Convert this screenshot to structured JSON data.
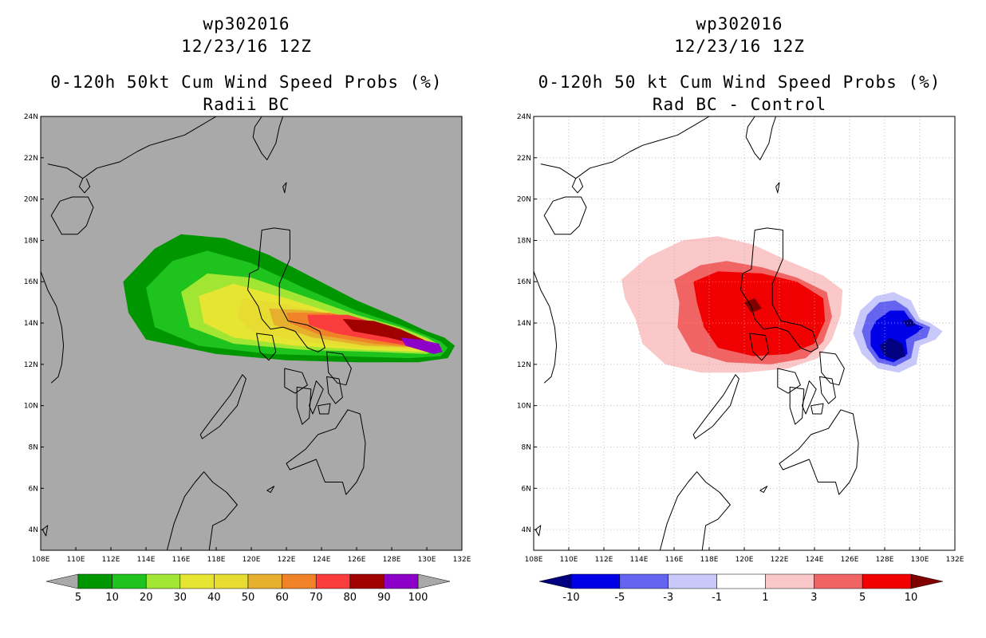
{
  "chart_data": [
    {
      "type": "heatmap",
      "storm": "wp302016",
      "date": "12/23/16 12Z",
      "title": "0-120h 50kt Cum Wind Speed Probs (%)",
      "subtitle": "Radii BC",
      "x_ticks": [
        "108E",
        "110E",
        "112E",
        "114E",
        "116E",
        "118E",
        "120E",
        "122E",
        "124E",
        "126E",
        "128E",
        "130E",
        "132E"
      ],
      "y_ticks": [
        "4N",
        "6N",
        "8N",
        "10N",
        "12N",
        "14N",
        "16N",
        "18N",
        "20N",
        "22N",
        "24N"
      ],
      "xlim": [
        108,
        132
      ],
      "ylim": [
        3,
        24
      ],
      "background": "#a9a9a9",
      "colorbar": {
        "labels": [
          "5",
          "10",
          "20",
          "30",
          "40",
          "50",
          "60",
          "70",
          "80",
          "90",
          "100"
        ],
        "colors": [
          "#009600",
          "#1ec31e",
          "#a0e632",
          "#e6e632",
          "#e6dc32",
          "#e6af2d",
          "#f08228",
          "#fa3c3c",
          "#a00000",
          "#8c00c8"
        ],
        "under_color": "#a9a9a9",
        "over_color": "#a9a9a9"
      },
      "contours": [
        {
          "level": 5,
          "color": "#009600",
          "points": [
            [
              112.7,
              16.0
            ],
            [
              114.5,
              17.6
            ],
            [
              116.0,
              18.3
            ],
            [
              118.5,
              18.1
            ],
            [
              121.0,
              17.3
            ],
            [
              123.5,
              16.2
            ],
            [
              126.0,
              15.1
            ],
            [
              128.5,
              14.2
            ],
            [
              130.0,
              13.6
            ],
            [
              131.0,
              13.3
            ],
            [
              131.6,
              12.9
            ],
            [
              131.2,
              12.3
            ],
            [
              129.5,
              12.1
            ],
            [
              126.0,
              12.1
            ],
            [
              122.0,
              12.2
            ],
            [
              118.0,
              12.5
            ],
            [
              114.0,
              13.2
            ],
            [
              113.0,
              14.5
            ]
          ]
        },
        {
          "level": 10,
          "color": "#1ec31e",
          "points": [
            [
              114.0,
              15.7
            ],
            [
              115.5,
              17.0
            ],
            [
              117.5,
              17.5
            ],
            [
              120.0,
              16.9
            ],
            [
              123.0,
              15.7
            ],
            [
              126.0,
              14.6
            ],
            [
              128.5,
              13.9
            ],
            [
              130.0,
              13.4
            ],
            [
              130.8,
              13.1
            ],
            [
              131.2,
              12.8
            ],
            [
              130.8,
              12.4
            ],
            [
              129.0,
              12.3
            ],
            [
              125.0,
              12.4
            ],
            [
              121.0,
              12.5
            ],
            [
              117.0,
              12.9
            ],
            [
              114.5,
              13.8
            ]
          ]
        },
        {
          "level": 20,
          "color": "#a0e632",
          "points": [
            [
              116.0,
              15.5
            ],
            [
              117.5,
              16.4
            ],
            [
              120.0,
              16.2
            ],
            [
              123.0,
              15.3
            ],
            [
              126.0,
              14.4
            ],
            [
              128.5,
              13.8
            ],
            [
              130.0,
              13.3
            ],
            [
              130.8,
              12.9
            ],
            [
              130.0,
              12.5
            ],
            [
              127.0,
              12.6
            ],
            [
              123.0,
              12.7
            ],
            [
              119.0,
              13.0
            ],
            [
              116.5,
              13.8
            ]
          ]
        },
        {
          "level": 30,
          "color": "#e6e632",
          "points": [
            [
              117.0,
              15.3
            ],
            [
              119.0,
              15.9
            ],
            [
              122.0,
              15.2
            ],
            [
              125.0,
              14.4
            ],
            [
              128.0,
              13.8
            ],
            [
              130.0,
              13.2
            ],
            [
              130.6,
              12.9
            ],
            [
              129.8,
              12.6
            ],
            [
              126.5,
              12.7
            ],
            [
              122.5,
              12.9
            ],
            [
              119.0,
              13.3
            ],
            [
              117.3,
              14.0
            ]
          ]
        },
        {
          "level": 40,
          "color": "#e6dc32",
          "points": [
            [
              119.5,
              15.2
            ],
            [
              122.0,
              14.9
            ],
            [
              125.0,
              14.3
            ],
            [
              128.0,
              13.7
            ],
            [
              130.0,
              13.2
            ],
            [
              130.5,
              12.9
            ],
            [
              129.8,
              12.7
            ],
            [
              126.5,
              12.8
            ],
            [
              123.0,
              13.1
            ],
            [
              120.0,
              13.6
            ],
            [
              119.2,
              14.3
            ]
          ]
        },
        {
          "level": 50,
          "color": "#e6af2d",
          "points": [
            [
              121.0,
              14.7
            ],
            [
              123.5,
              14.6
            ],
            [
              126.0,
              14.2
            ],
            [
              128.5,
              13.6
            ],
            [
              130.2,
              13.1
            ],
            [
              130.5,
              12.9
            ],
            [
              129.8,
              12.8
            ],
            [
              126.5,
              12.9
            ],
            [
              123.5,
              13.3
            ],
            [
              121.3,
              13.9
            ]
          ]
        },
        {
          "level": 60,
          "color": "#f08228",
          "points": [
            [
              122.0,
              14.5
            ],
            [
              124.5,
              14.5
            ],
            [
              127.0,
              14.0
            ],
            [
              129.0,
              13.5
            ],
            [
              130.3,
              13.0
            ],
            [
              129.8,
              12.8
            ],
            [
              127.0,
              13.0
            ],
            [
              124.0,
              13.4
            ],
            [
              122.2,
              14.0
            ]
          ]
        },
        {
          "level": 70,
          "color": "#fa3c3c",
          "points": [
            [
              123.2,
              14.4
            ],
            [
              125.5,
              14.4
            ],
            [
              127.5,
              13.9
            ],
            [
              129.3,
              13.4
            ],
            [
              130.4,
              12.9
            ],
            [
              129.8,
              12.8
            ],
            [
              127.5,
              13.1
            ],
            [
              124.8,
              13.5
            ],
            [
              123.3,
              13.9
            ]
          ]
        },
        {
          "level": 80,
          "color": "#a00000",
          "points": [
            [
              125.2,
              14.2
            ],
            [
              127.0,
              14.1
            ],
            [
              128.5,
              13.7
            ],
            [
              129.8,
              13.2
            ],
            [
              130.3,
              12.9
            ],
            [
              129.7,
              12.9
            ],
            [
              127.8,
              13.3
            ],
            [
              125.8,
              13.6
            ]
          ]
        },
        {
          "level": 90,
          "color": "#8c00c8",
          "points": [
            [
              128.5,
              13.3
            ],
            [
              129.6,
              13.2
            ],
            [
              130.7,
              13.0
            ],
            [
              130.9,
              12.6
            ],
            [
              130.4,
              12.5
            ],
            [
              129.6,
              12.7
            ],
            [
              128.8,
              12.9
            ]
          ]
        }
      ]
    },
    {
      "type": "heatmap",
      "storm": "wp302016",
      "date": "12/23/16 12Z",
      "title": "0-120h 50 kt Cum Wind Speed Probs (%)",
      "subtitle": "Rad BC - Control",
      "x_ticks": [
        "108E",
        "110E",
        "112E",
        "114E",
        "116E",
        "118E",
        "120E",
        "122E",
        "124E",
        "126E",
        "128E",
        "130E",
        "132E"
      ],
      "y_ticks": [
        "4N",
        "6N",
        "8N",
        "10N",
        "12N",
        "14N",
        "16N",
        "18N",
        "20N",
        "22N",
        "24N"
      ],
      "xlim": [
        108,
        132
      ],
      "ylim": [
        3,
        24
      ],
      "background": "#ffffff",
      "grid": true,
      "colorbar": {
        "labels": [
          "-10",
          "-5",
          "-3",
          "-1",
          "1",
          "3",
          "5",
          "10"
        ],
        "colors": [
          "#0000e6",
          "#6464f0",
          "#c8c8fa",
          "#ffffff",
          "#fac8c8",
          "#f06464",
          "#f00000"
        ],
        "under_color": "#000080",
        "over_color": "#800000"
      },
      "contours": [
        {
          "level": 1,
          "color": "#fac8c8",
          "points": [
            [
              113.0,
              16.1
            ],
            [
              114.5,
              17.2
            ],
            [
              116.5,
              18.0
            ],
            [
              118.5,
              18.2
            ],
            [
              120.5,
              17.8
            ],
            [
              122.5,
              17.0
            ],
            [
              124.5,
              16.3
            ],
            [
              125.6,
              15.6
            ],
            [
              125.5,
              14.4
            ],
            [
              125.0,
              13.2
            ],
            [
              124.2,
              12.3
            ],
            [
              122.5,
              11.8
            ],
            [
              120.0,
              11.6
            ],
            [
              117.5,
              11.6
            ],
            [
              115.5,
              12.0
            ],
            [
              114.2,
              13.0
            ],
            [
              113.8,
              14.2
            ],
            [
              113.2,
              15.2
            ]
          ]
        },
        {
          "level": 3,
          "color": "#f06464",
          "points": [
            [
              116.0,
              16.1
            ],
            [
              117.5,
              16.8
            ],
            [
              119.0,
              17.0
            ],
            [
              121.0,
              16.7
            ],
            [
              123.0,
              16.2
            ],
            [
              124.7,
              15.5
            ],
            [
              125.0,
              14.3
            ],
            [
              124.5,
              13.1
            ],
            [
              123.5,
              12.3
            ],
            [
              121.5,
              12.0
            ],
            [
              119.0,
              12.1
            ],
            [
              117.0,
              12.6
            ],
            [
              116.2,
              13.8
            ],
            [
              116.3,
              15.0
            ]
          ]
        },
        {
          "level": 5,
          "color": "#f00000",
          "points": [
            [
              117.1,
              16.0
            ],
            [
              118.5,
              16.5
            ],
            [
              121.0,
              16.4
            ],
            [
              123.0,
              16.0
            ],
            [
              124.5,
              15.2
            ],
            [
              124.6,
              14.1
            ],
            [
              124.0,
              13.0
            ],
            [
              122.5,
              12.5
            ],
            [
              120.5,
              12.4
            ],
            [
              118.5,
              12.8
            ],
            [
              117.7,
              13.8
            ],
            [
              117.3,
              15.0
            ]
          ]
        },
        {
          "level": 10,
          "color": "#800000",
          "points": [
            [
              120.0,
              15.0
            ],
            [
              120.6,
              15.2
            ],
            [
              121.0,
              14.7
            ],
            [
              120.4,
              14.5
            ]
          ]
        },
        {
          "level": -1,
          "color": "#c8c8fa",
          "points": [
            [
              126.6,
              14.6
            ],
            [
              127.5,
              15.3
            ],
            [
              128.5,
              15.5
            ],
            [
              129.5,
              15.1
            ],
            [
              130.0,
              14.2
            ],
            [
              130.6,
              14.0
            ],
            [
              131.3,
              13.6
            ],
            [
              130.9,
              13.2
            ],
            [
              130.0,
              12.9
            ],
            [
              129.8,
              12.0
            ],
            [
              128.8,
              11.6
            ],
            [
              127.6,
              11.8
            ],
            [
              126.7,
              12.5
            ],
            [
              126.2,
              13.5
            ]
          ]
        },
        {
          "level": -3,
          "color": "#6464f0",
          "points": [
            [
              127.0,
              14.4
            ],
            [
              127.7,
              15.0
            ],
            [
              128.6,
              15.1
            ],
            [
              129.3,
              14.7
            ],
            [
              129.8,
              14.1
            ],
            [
              130.6,
              13.8
            ],
            [
              130.4,
              13.3
            ],
            [
              129.7,
              13.1
            ],
            [
              129.5,
              12.3
            ],
            [
              128.6,
              11.9
            ],
            [
              127.6,
              12.1
            ],
            [
              127.0,
              12.8
            ],
            [
              126.7,
              13.6
            ]
          ]
        },
        {
          "level": -5,
          "color": "#0000e6",
          "points": [
            [
              127.5,
              14.1
            ],
            [
              128.3,
              14.6
            ],
            [
              129.1,
              14.6
            ],
            [
              129.6,
              14.0
            ],
            [
              130.2,
              13.8
            ],
            [
              129.8,
              13.5
            ],
            [
              129.2,
              13.2
            ],
            [
              129.3,
              12.5
            ],
            [
              128.5,
              12.1
            ],
            [
              127.7,
              12.3
            ],
            [
              127.2,
              12.9
            ],
            [
              127.2,
              13.6
            ]
          ]
        },
        {
          "level": -10,
          "color": "#000080",
          "points": [
            [
              127.7,
              12.9
            ],
            [
              128.3,
              13.3
            ],
            [
              129.0,
              13.0
            ],
            [
              129.2,
              12.4
            ],
            [
              128.6,
              12.2
            ],
            [
              128.0,
              12.4
            ]
          ]
        },
        {
          "level": -10,
          "color": "#000080",
          "points": [
            [
              129.0,
              14.1
            ],
            [
              129.5,
              14.2
            ],
            [
              129.8,
              13.9
            ],
            [
              129.3,
              13.8
            ]
          ]
        }
      ]
    }
  ]
}
